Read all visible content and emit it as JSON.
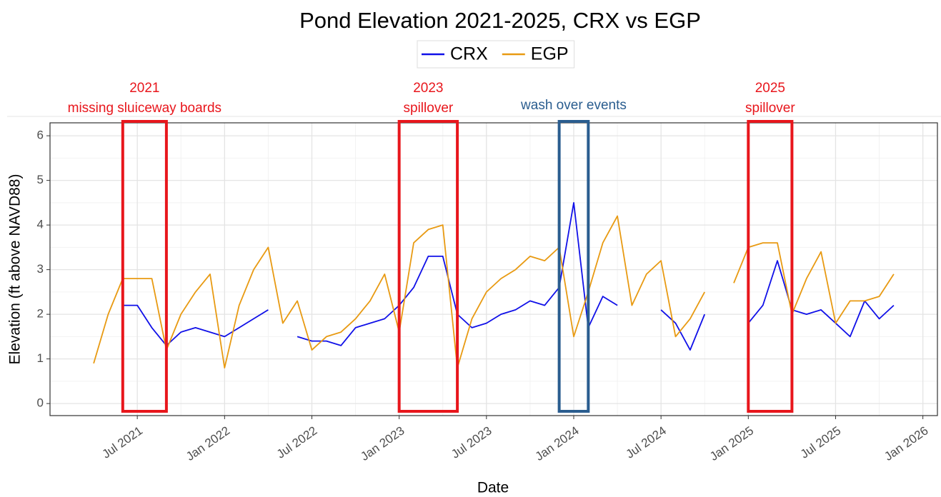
{
  "chart_data": {
    "type": "line",
    "title": "Pond Elevation 2021-2025, CRX vs EGP",
    "x_label": "Date",
    "y_label": "Elevation (ft above NAVD88)",
    "x": [
      "2021-04",
      "2021-05",
      "2021-06",
      "2021-07",
      "2021-08",
      "2021-09",
      "2021-10",
      "2021-11",
      "2021-12",
      "2022-01",
      "2022-02",
      "2022-03",
      "2022-04",
      "2022-05",
      "2022-06",
      "2022-07",
      "2022-08",
      "2022-09",
      "2022-10",
      "2022-11",
      "2022-12",
      "2023-01",
      "2023-02",
      "2023-03",
      "2023-04",
      "2023-05",
      "2023-06",
      "2023-07",
      "2023-08",
      "2023-09",
      "2023-10",
      "2023-11",
      "2023-12",
      "2024-01",
      "2024-02",
      "2024-03",
      "2024-04",
      "2024-05",
      "2024-06",
      "2024-07",
      "2024-08",
      "2024-09",
      "2024-10",
      "2024-11",
      "2024-12",
      "2025-01",
      "2025-02",
      "2025-03",
      "2025-04",
      "2025-05",
      "2025-06",
      "2025-07",
      "2025-08",
      "2025-09",
      "2025-10",
      "2025-11"
    ],
    "series": [
      {
        "name": "CRX",
        "color": "#1010e8",
        "values": [
          null,
          null,
          2.2,
          2.2,
          1.7,
          1.3,
          1.6,
          1.7,
          1.6,
          1.5,
          1.7,
          1.9,
          2.1,
          null,
          1.5,
          1.4,
          1.4,
          1.3,
          1.7,
          1.8,
          1.9,
          2.2,
          2.6,
          3.3,
          3.3,
          2.0,
          1.7,
          1.8,
          2.0,
          2.1,
          2.3,
          2.2,
          2.6,
          4.5,
          1.7,
          2.4,
          2.2,
          null,
          null,
          2.1,
          1.8,
          1.2,
          2.0,
          null,
          null,
          1.8,
          2.2,
          3.2,
          2.1,
          2.0,
          2.1,
          1.8,
          1.5,
          2.3,
          1.9,
          2.2
        ]
      },
      {
        "name": "EGP",
        "color": "#e89a12",
        "values": [
          0.9,
          2.0,
          2.8,
          2.8,
          2.8,
          1.2,
          2.0,
          2.5,
          2.9,
          0.8,
          2.2,
          3.0,
          3.5,
          1.8,
          2.3,
          1.2,
          1.5,
          1.6,
          1.9,
          2.3,
          2.9,
          1.6,
          3.6,
          3.9,
          4.0,
          0.8,
          1.9,
          2.5,
          2.8,
          3.0,
          3.3,
          3.2,
          3.5,
          1.5,
          2.5,
          3.6,
          4.2,
          2.2,
          2.9,
          3.2,
          1.5,
          1.9,
          2.5,
          null,
          2.7,
          3.5,
          3.6,
          3.6,
          2.0,
          2.8,
          3.4,
          1.8,
          2.3,
          2.3,
          2.4,
          2.9
        ]
      }
    ],
    "xlim": [
      "2021-01",
      "2026-02"
    ],
    "xticks": [
      {
        "value": "2021-07",
        "label": "Jul 2021"
      },
      {
        "value": "2022-01",
        "label": "Jan 2022"
      },
      {
        "value": "2022-07",
        "label": "Jul 2022"
      },
      {
        "value": "2023-01",
        "label": "Jan 2023"
      },
      {
        "value": "2023-07",
        "label": "Jul 2023"
      },
      {
        "value": "2024-01",
        "label": "Jan 2024"
      },
      {
        "value": "2024-07",
        "label": "Jul 2024"
      },
      {
        "value": "2025-01",
        "label": "Jan 2025"
      },
      {
        "value": "2025-07",
        "label": "Jul 2025"
      },
      {
        "value": "2026-01",
        "label": "Jan 2026"
      }
    ],
    "ylim": [
      -0.27,
      6.29
    ],
    "yticks": [
      0,
      1,
      2,
      3,
      4,
      5,
      6
    ],
    "grid": true,
    "legend": "top",
    "annotations": [
      {
        "lines": [
          "2021",
          "missing sluiceway boards"
        ],
        "x": [
          "2021-06",
          "2021-09"
        ],
        "color": "#e8161c"
      },
      {
        "lines": [
          "2023",
          "spillover"
        ],
        "x": [
          "2023-01",
          "2023-05"
        ],
        "color": "#e8161c"
      },
      {
        "lines": [
          "wash over events"
        ],
        "x": [
          "2023-12",
          "2024-02"
        ],
        "color": "#2a5d8f"
      },
      {
        "lines": [
          "2025",
          "spillover"
        ],
        "x": [
          "2025-01",
          "2025-04"
        ],
        "color": "#e8161c"
      }
    ]
  }
}
